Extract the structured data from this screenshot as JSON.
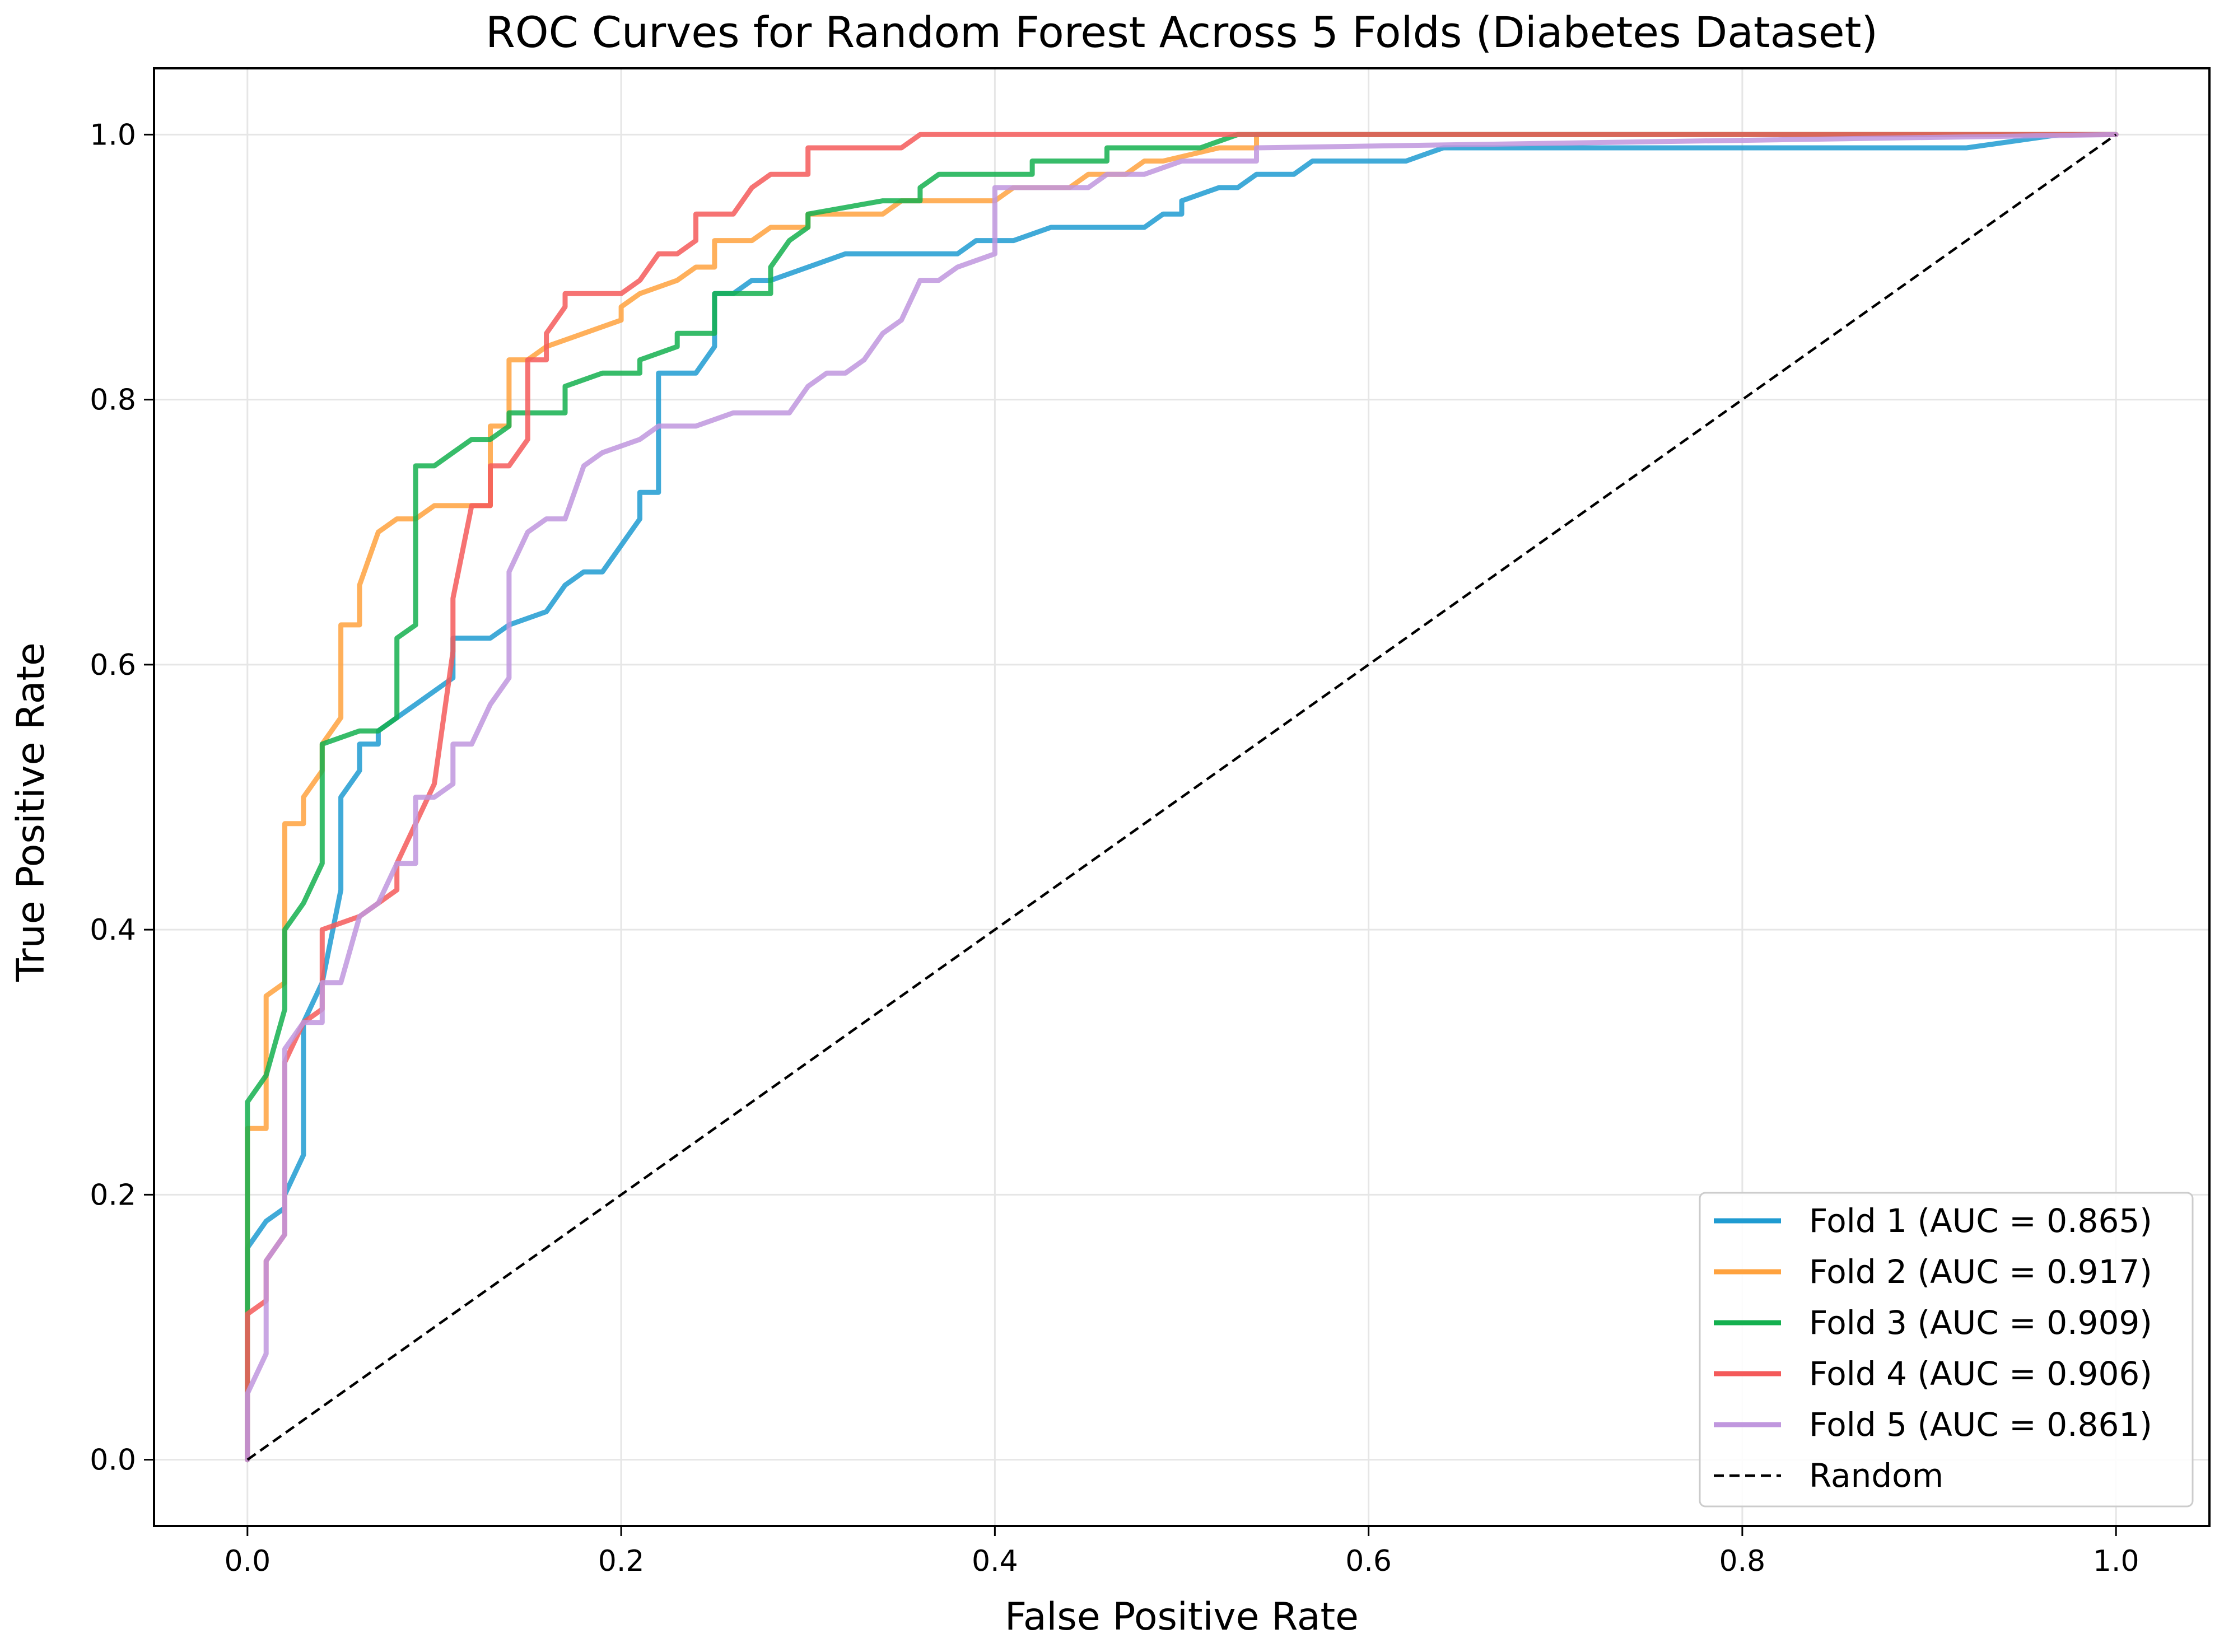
{
  "chart_data": {
    "type": "line",
    "title": "ROC Curves for Random Forest Across 5 Folds (Diabetes Dataset)",
    "xlabel": "False Positive Rate",
    "ylabel": "True Positive Rate",
    "xlim": [
      -0.05,
      1.05
    ],
    "ylim": [
      -0.05,
      1.05
    ],
    "xticks": [
      0.0,
      0.2,
      0.4,
      0.6,
      0.8,
      1.0
    ],
    "xtick_labels": [
      "0.0",
      "0.2",
      "0.4",
      "0.6",
      "0.8",
      "1.0"
    ],
    "yticks": [
      0.0,
      0.2,
      0.4,
      0.6,
      0.8,
      1.0
    ],
    "ytick_labels": [
      "0.0",
      "0.2",
      "0.4",
      "0.6",
      "0.8",
      "1.0"
    ],
    "grid": true,
    "legend_position": "lower-right",
    "series": [
      {
        "name": "Fold 1 (AUC = 0.865)",
        "color": "#1f9bd1",
        "x": [
          0,
          0,
          0.01,
          0.02,
          0.02,
          0.03,
          0.03,
          0.04,
          0.05,
          0.05,
          0.06,
          0.06,
          0.07,
          0.07,
          0.08,
          0.09,
          0.11,
          0.11,
          0.13,
          0.14,
          0.16,
          0.17,
          0.18,
          0.19,
          0.21,
          0.21,
          0.22,
          0.22,
          0.24,
          0.25,
          0.25,
          0.26,
          0.27,
          0.28,
          0.3,
          0.32,
          0.34,
          0.38,
          0.39,
          0.41,
          0.43,
          0.48,
          0.49,
          0.5,
          0.5,
          0.52,
          0.53,
          0.54,
          0.55,
          0.56,
          0.57,
          0.58,
          0.62,
          0.64,
          0.66,
          0.92,
          0.97,
          1.0
        ],
        "y": [
          0,
          0.16,
          0.18,
          0.19,
          0.2,
          0.23,
          0.33,
          0.36,
          0.43,
          0.5,
          0.52,
          0.54,
          0.54,
          0.55,
          0.56,
          0.57,
          0.59,
          0.62,
          0.62,
          0.63,
          0.64,
          0.66,
          0.67,
          0.67,
          0.71,
          0.73,
          0.73,
          0.82,
          0.82,
          0.84,
          0.88,
          0.88,
          0.89,
          0.89,
          0.9,
          0.91,
          0.91,
          0.91,
          0.92,
          0.92,
          0.93,
          0.93,
          0.94,
          0.94,
          0.95,
          0.96,
          0.96,
          0.97,
          0.97,
          0.97,
          0.98,
          0.98,
          0.98,
          0.99,
          0.99,
          0.99,
          1.0,
          1.0
        ]
      },
      {
        "name": "Fold 2 (AUC = 0.917)",
        "color": "#ffa23e",
        "x": [
          0,
          0,
          0.01,
          0.01,
          0.02,
          0.02,
          0.03,
          0.03,
          0.04,
          0.04,
          0.05,
          0.05,
          0.06,
          0.06,
          0.07,
          0.08,
          0.09,
          0.1,
          0.11,
          0.13,
          0.13,
          0.14,
          0.14,
          0.15,
          0.16,
          0.18,
          0.2,
          0.2,
          0.21,
          0.23,
          0.24,
          0.25,
          0.25,
          0.26,
          0.27,
          0.28,
          0.29,
          0.3,
          0.3,
          0.33,
          0.34,
          0.35,
          0.36,
          0.37,
          0.38,
          0.4,
          0.41,
          0.42,
          0.43,
          0.44,
          0.45,
          0.46,
          0.47,
          0.48,
          0.49,
          0.52,
          0.53,
          0.54,
          0.54,
          1.0
        ],
        "y": [
          0,
          0.25,
          0.25,
          0.35,
          0.36,
          0.48,
          0.48,
          0.5,
          0.52,
          0.54,
          0.56,
          0.63,
          0.63,
          0.66,
          0.7,
          0.71,
          0.71,
          0.72,
          0.72,
          0.72,
          0.78,
          0.78,
          0.83,
          0.83,
          0.84,
          0.85,
          0.86,
          0.87,
          0.88,
          0.89,
          0.9,
          0.9,
          0.92,
          0.92,
          0.92,
          0.93,
          0.93,
          0.93,
          0.94,
          0.94,
          0.94,
          0.95,
          0.95,
          0.95,
          0.95,
          0.95,
          0.96,
          0.96,
          0.96,
          0.96,
          0.97,
          0.97,
          0.97,
          0.98,
          0.98,
          0.99,
          0.99,
          0.99,
          1.0,
          1.0
        ]
      },
      {
        "name": "Fold 3 (AUC = 0.909)",
        "color": "#14b04f",
        "x": [
          0,
          0,
          0.01,
          0.02,
          0.02,
          0.03,
          0.04,
          0.04,
          0.06,
          0.07,
          0.08,
          0.08,
          0.09,
          0.09,
          0.1,
          0.11,
          0.12,
          0.13,
          0.14,
          0.14,
          0.17,
          0.17,
          0.19,
          0.21,
          0.21,
          0.23,
          0.23,
          0.25,
          0.25,
          0.28,
          0.28,
          0.29,
          0.3,
          0.3,
          0.34,
          0.36,
          0.36,
          0.37,
          0.4,
          0.42,
          0.42,
          0.45,
          0.46,
          0.46,
          0.49,
          0.5,
          0.51,
          0.53,
          0.54,
          0.54,
          1.0
        ],
        "y": [
          0,
          0.27,
          0.29,
          0.34,
          0.4,
          0.42,
          0.45,
          0.54,
          0.55,
          0.55,
          0.56,
          0.62,
          0.63,
          0.75,
          0.75,
          0.76,
          0.77,
          0.77,
          0.78,
          0.79,
          0.79,
          0.81,
          0.82,
          0.82,
          0.83,
          0.84,
          0.85,
          0.85,
          0.88,
          0.88,
          0.9,
          0.92,
          0.93,
          0.94,
          0.95,
          0.95,
          0.96,
          0.97,
          0.97,
          0.97,
          0.98,
          0.98,
          0.98,
          0.99,
          0.99,
          0.99,
          0.99,
          1.0,
          1.0,
          1.0,
          1.0
        ]
      },
      {
        "name": "Fold 4 (AUC = 0.906)",
        "color": "#f45a5a",
        "x": [
          0,
          0,
          0.01,
          0.01,
          0.02,
          0.02,
          0.03,
          0.04,
          0.04,
          0.06,
          0.07,
          0.08,
          0.08,
          0.09,
          0.1,
          0.11,
          0.11,
          0.12,
          0.13,
          0.13,
          0.14,
          0.15,
          0.15,
          0.16,
          0.16,
          0.17,
          0.17,
          0.19,
          0.2,
          0.21,
          0.22,
          0.23,
          0.24,
          0.24,
          0.26,
          0.27,
          0.27,
          0.28,
          0.3,
          0.3,
          0.33,
          0.35,
          0.36,
          0.37,
          0.54,
          1.0
        ],
        "y": [
          0,
          0.11,
          0.12,
          0.15,
          0.17,
          0.3,
          0.33,
          0.34,
          0.4,
          0.41,
          0.42,
          0.43,
          0.45,
          0.48,
          0.51,
          0.61,
          0.65,
          0.72,
          0.72,
          0.75,
          0.75,
          0.77,
          0.83,
          0.83,
          0.85,
          0.87,
          0.88,
          0.88,
          0.88,
          0.89,
          0.91,
          0.91,
          0.92,
          0.94,
          0.94,
          0.96,
          0.96,
          0.97,
          0.97,
          0.99,
          0.99,
          0.99,
          1.0,
          1.0,
          1.0,
          1.0
        ]
      },
      {
        "name": "Fold 5 (AUC = 0.861)",
        "color": "#c097de",
        "x": [
          0,
          0,
          0.01,
          0.01,
          0.02,
          0.02,
          0.03,
          0.04,
          0.04,
          0.05,
          0.06,
          0.07,
          0.08,
          0.09,
          0.09,
          0.1,
          0.11,
          0.11,
          0.12,
          0.13,
          0.14,
          0.14,
          0.15,
          0.16,
          0.17,
          0.18,
          0.19,
          0.21,
          0.22,
          0.24,
          0.26,
          0.28,
          0.29,
          0.3,
          0.31,
          0.32,
          0.33,
          0.34,
          0.35,
          0.35,
          0.36,
          0.37,
          0.38,
          0.4,
          0.4,
          0.43,
          0.44,
          0.45,
          0.46,
          0.47,
          0.48,
          0.5,
          0.52,
          0.53,
          0.54,
          0.54,
          1.0
        ],
        "y": [
          0,
          0.05,
          0.08,
          0.15,
          0.17,
          0.31,
          0.33,
          0.33,
          0.36,
          0.36,
          0.41,
          0.42,
          0.45,
          0.45,
          0.5,
          0.5,
          0.51,
          0.54,
          0.54,
          0.57,
          0.59,
          0.67,
          0.7,
          0.71,
          0.71,
          0.75,
          0.76,
          0.77,
          0.78,
          0.78,
          0.79,
          0.79,
          0.79,
          0.81,
          0.82,
          0.82,
          0.83,
          0.85,
          0.86,
          0.86,
          0.89,
          0.89,
          0.9,
          0.91,
          0.96,
          0.96,
          0.96,
          0.96,
          0.97,
          0.97,
          0.97,
          0.98,
          0.98,
          0.98,
          0.98,
          0.99,
          1.0
        ]
      },
      {
        "name": "Random",
        "color": "#000000",
        "dashed": true,
        "x": [
          0,
          1
        ],
        "y": [
          0,
          1
        ]
      }
    ]
  }
}
